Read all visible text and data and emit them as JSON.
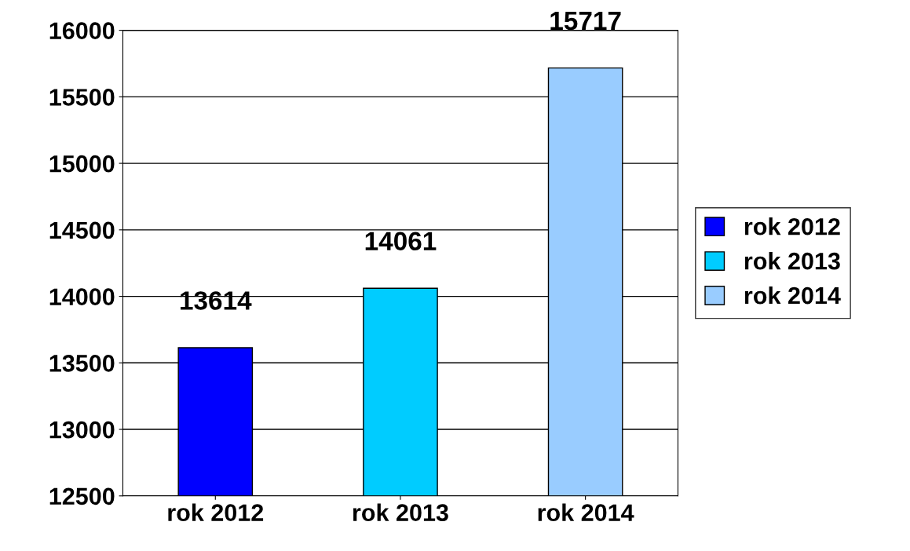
{
  "chart_data": {
    "type": "bar",
    "categories": [
      "rok 2012",
      "rok 2013",
      "rok 2014"
    ],
    "series": [
      {
        "name": "rok 2012",
        "color": "#0000ff",
        "values": [
          13614,
          null,
          null
        ]
      },
      {
        "name": "rok 2013",
        "color": "#00ccff",
        "values": [
          null,
          14061,
          null
        ]
      },
      {
        "name": "rok 2014",
        "color": "#99ccff",
        "values": [
          null,
          null,
          15717
        ]
      }
    ],
    "ylim": [
      12500,
      16000
    ],
    "yticks": [
      12500,
      13000,
      13500,
      14000,
      14500,
      15000,
      15500,
      16000
    ],
    "grid": "y",
    "legend": "right",
    "data_labels": true
  }
}
